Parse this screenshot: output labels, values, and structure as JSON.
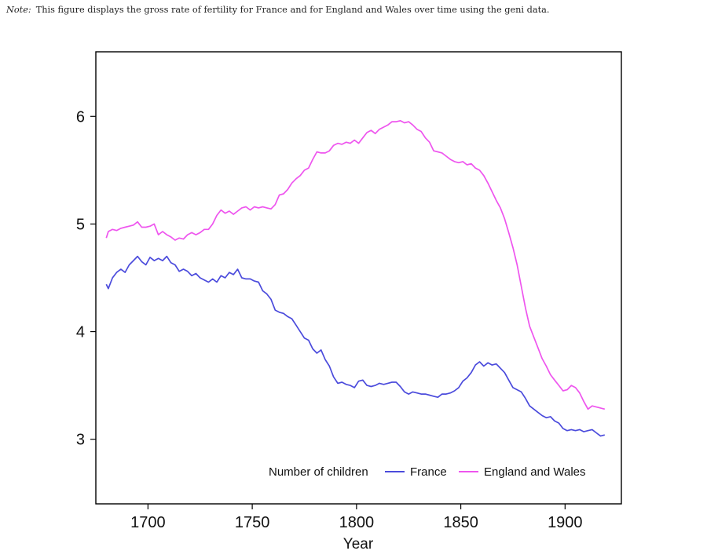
{
  "note": {
    "lead": "Note:",
    "text": "This figure displays the gross rate of fertility for France and for England and Wales over time using the geni data."
  },
  "chart_data": {
    "type": "line",
    "title": "",
    "xlabel": "Year",
    "ylabel": "",
    "xlim": [
      1675,
      1927
    ],
    "ylim": [
      2.4,
      6.6
    ],
    "xticks": [
      1700,
      1750,
      1800,
      1850,
      1900
    ],
    "yticks": [
      3,
      4,
      5,
      6
    ],
    "grid": false,
    "legend": {
      "title": "Number of children",
      "placement": "bottom-right inside"
    },
    "series": [
      {
        "name": "France",
        "color": "#4b4bdc",
        "x": [
          1680,
          1681,
          1683,
          1685,
          1687,
          1689,
          1691,
          1693,
          1695,
          1697,
          1699,
          1701,
          1703,
          1705,
          1707,
          1709,
          1711,
          1713,
          1715,
          1717,
          1719,
          1721,
          1723,
          1725,
          1727,
          1729,
          1731,
          1733,
          1735,
          1737,
          1739,
          1741,
          1743,
          1745,
          1747,
          1749,
          1751,
          1753,
          1755,
          1757,
          1759,
          1761,
          1763,
          1765,
          1767,
          1769,
          1771,
          1773,
          1775,
          1777,
          1779,
          1781,
          1783,
          1785,
          1787,
          1789,
          1791,
          1793,
          1795,
          1797,
          1799,
          1801,
          1803,
          1805,
          1807,
          1809,
          1811,
          1813,
          1815,
          1817,
          1819,
          1821,
          1823,
          1825,
          1827,
          1829,
          1831,
          1833,
          1835,
          1837,
          1839,
          1841,
          1843,
          1845,
          1847,
          1849,
          1851,
          1853,
          1855,
          1857,
          1859,
          1861,
          1863,
          1865,
          1867,
          1869,
          1871,
          1873,
          1875,
          1877,
          1879,
          1881,
          1883,
          1885,
          1887,
          1889,
          1891,
          1893,
          1895,
          1897,
          1899,
          1901,
          1903,
          1905,
          1907,
          1909,
          1911,
          1913,
          1915,
          1917,
          1919
        ],
        "y": [
          4.44,
          4.4,
          4.5,
          4.55,
          4.58,
          4.55,
          4.62,
          4.66,
          4.7,
          4.65,
          4.62,
          4.69,
          4.66,
          4.68,
          4.66,
          4.7,
          4.64,
          4.62,
          4.56,
          4.58,
          4.56,
          4.52,
          4.54,
          4.5,
          4.48,
          4.46,
          4.49,
          4.46,
          4.52,
          4.5,
          4.55,
          4.53,
          4.58,
          4.5,
          4.49,
          4.49,
          4.47,
          4.46,
          4.38,
          4.35,
          4.3,
          4.2,
          4.18,
          4.17,
          4.14,
          4.12,
          4.06,
          4.0,
          3.94,
          3.92,
          3.84,
          3.8,
          3.83,
          3.74,
          3.68,
          3.58,
          3.52,
          3.53,
          3.51,
          3.5,
          3.48,
          3.54,
          3.55,
          3.5,
          3.49,
          3.5,
          3.52,
          3.51,
          3.52,
          3.53,
          3.53,
          3.49,
          3.44,
          3.42,
          3.44,
          3.43,
          3.42,
          3.42,
          3.41,
          3.4,
          3.39,
          3.42,
          3.42,
          3.43,
          3.45,
          3.48,
          3.54,
          3.57,
          3.62,
          3.69,
          3.72,
          3.68,
          3.71,
          3.69,
          3.7,
          3.66,
          3.62,
          3.55,
          3.48,
          3.46,
          3.44,
          3.38,
          3.31,
          3.28,
          3.25,
          3.22,
          3.2,
          3.21,
          3.17,
          3.15,
          3.1,
          3.08,
          3.09,
          3.08,
          3.09,
          3.07,
          3.08,
          3.09,
          3.06,
          3.03,
          3.04
        ]
      },
      {
        "name": "England and Wales",
        "color": "#ee55ee",
        "x": [
          1680,
          1681,
          1683,
          1685,
          1687,
          1689,
          1691,
          1693,
          1695,
          1697,
          1699,
          1701,
          1703,
          1705,
          1707,
          1709,
          1711,
          1713,
          1715,
          1717,
          1719,
          1721,
          1723,
          1725,
          1727,
          1729,
          1731,
          1733,
          1735,
          1737,
          1739,
          1741,
          1743,
          1745,
          1747,
          1749,
          1751,
          1753,
          1755,
          1757,
          1759,
          1761,
          1763,
          1765,
          1767,
          1769,
          1771,
          1773,
          1775,
          1777,
          1779,
          1781,
          1783,
          1785,
          1787,
          1789,
          1791,
          1793,
          1795,
          1797,
          1799,
          1801,
          1803,
          1805,
          1807,
          1809,
          1811,
          1813,
          1815,
          1817,
          1819,
          1821,
          1823,
          1825,
          1827,
          1829,
          1831,
          1833,
          1835,
          1837,
          1839,
          1841,
          1843,
          1845,
          1847,
          1849,
          1851,
          1853,
          1855,
          1857,
          1859,
          1861,
          1863,
          1865,
          1867,
          1869,
          1871,
          1873,
          1875,
          1877,
          1879,
          1881,
          1883,
          1885,
          1887,
          1889,
          1891,
          1893,
          1895,
          1897,
          1899,
          1901,
          1903,
          1905,
          1907,
          1909,
          1911,
          1913,
          1915,
          1917,
          1919
        ],
        "y": [
          4.87,
          4.93,
          4.95,
          4.94,
          4.96,
          4.97,
          4.98,
          4.99,
          5.02,
          4.97,
          4.97,
          4.98,
          5.0,
          4.9,
          4.93,
          4.9,
          4.88,
          4.85,
          4.87,
          4.86,
          4.9,
          4.92,
          4.9,
          4.92,
          4.95,
          4.95,
          5.0,
          5.08,
          5.13,
          5.1,
          5.12,
          5.09,
          5.12,
          5.15,
          5.16,
          5.13,
          5.16,
          5.15,
          5.16,
          5.15,
          5.14,
          5.18,
          5.27,
          5.28,
          5.32,
          5.38,
          5.42,
          5.45,
          5.5,
          5.52,
          5.6,
          5.67,
          5.66,
          5.66,
          5.68,
          5.73,
          5.75,
          5.74,
          5.76,
          5.75,
          5.78,
          5.75,
          5.8,
          5.85,
          5.87,
          5.84,
          5.88,
          5.9,
          5.92,
          5.95,
          5.95,
          5.96,
          5.94,
          5.95,
          5.92,
          5.88,
          5.86,
          5.8,
          5.76,
          5.68,
          5.67,
          5.66,
          5.63,
          5.6,
          5.58,
          5.57,
          5.58,
          5.55,
          5.56,
          5.52,
          5.5,
          5.45,
          5.38,
          5.3,
          5.22,
          5.15,
          5.05,
          4.92,
          4.78,
          4.62,
          4.42,
          4.22,
          4.05,
          3.95,
          3.85,
          3.75,
          3.68,
          3.6,
          3.55,
          3.5,
          3.45,
          3.46,
          3.5,
          3.48,
          3.43,
          3.35,
          3.28,
          3.31,
          3.3,
          3.29,
          3.28
        ]
      }
    ]
  }
}
